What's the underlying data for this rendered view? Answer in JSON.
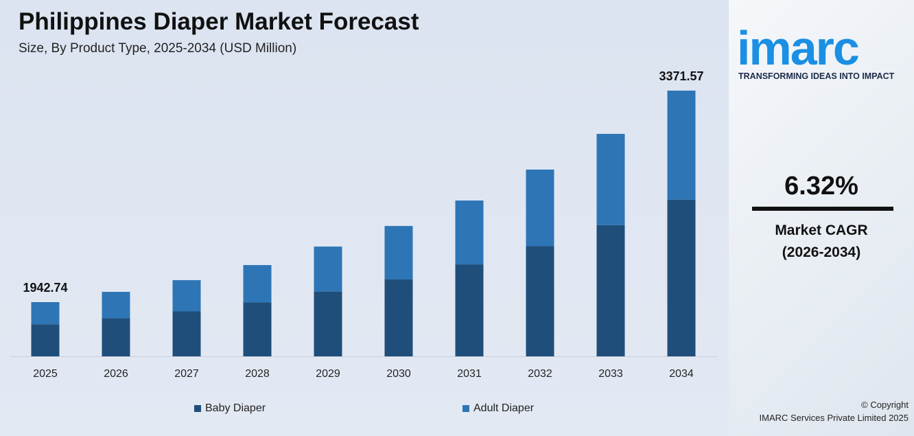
{
  "header": {
    "title": "Philippines Diaper Market Forecast",
    "subtitle": "Size, By Product Type, 2025-2034 (USD Million)"
  },
  "brand": {
    "logo": "imarc",
    "tagline": "TRANSFORMING IDEAS INTO IMPACT",
    "cagr_value": "6.32%",
    "cagr_label": "Market CAGR",
    "cagr_period": "(2026-2034)",
    "copyright": "© Copyright",
    "company": "IMARC Services Private Limited 2025"
  },
  "chart_data": {
    "type": "bar",
    "stacked": true,
    "title": "Philippines Diaper Market Forecast",
    "subtitle": "Size, By Product Type, 2025-2034 (USD Million)",
    "categories": [
      "2025",
      "2026",
      "2027",
      "2028",
      "2029",
      "2030",
      "2031",
      "2032",
      "2033",
      "2034"
    ],
    "series": [
      {
        "name": "Baby Diaper",
        "color": "#1f4e7a",
        "values": [
          1146.2,
          1187,
          1234,
          1294,
          1368,
          1450,
          1551,
          1674,
          1817,
          1989
        ]
      },
      {
        "name": "Adult Diaper",
        "color": "#2e75b6",
        "values": [
          796.5,
          825,
          857,
          899,
          950,
          1007,
          1078,
          1164,
          1262,
          1383
        ]
      }
    ],
    "totals": [
      1942.74,
      2012,
      2091,
      2193,
      2318,
      2457,
      2629,
      2838,
      3079,
      3371.57
    ],
    "data_labels": {
      "0": "1942.74",
      "9": "3371.57"
    },
    "legend": "bottom",
    "grid": false
  }
}
